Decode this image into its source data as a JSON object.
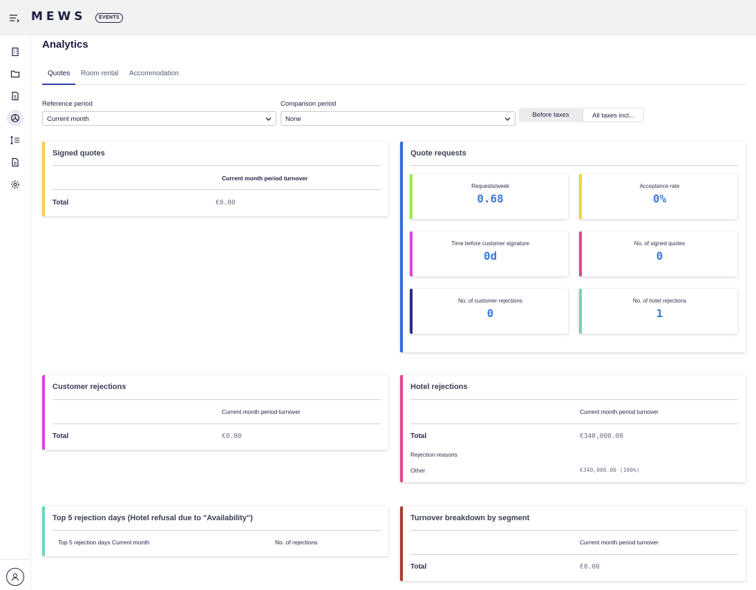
{
  "header": {
    "logo": "MEWS",
    "badge": "EVENTS"
  },
  "sidebar": {
    "items": [
      {
        "icon": "building-icon"
      },
      {
        "icon": "folder-icon"
      },
      {
        "icon": "invoice-icon"
      },
      {
        "icon": "analytics-pie-icon",
        "active": true
      },
      {
        "icon": "sort-list-icon"
      },
      {
        "icon": "document-icon"
      },
      {
        "icon": "settings-gear-icon"
      }
    ],
    "profile_icon": "user-avatar-icon"
  },
  "page": {
    "title": "Analytics"
  },
  "tabs": [
    {
      "label": "Quotes",
      "active": true
    },
    {
      "label": "Room rental"
    },
    {
      "label": "Accommodation"
    }
  ],
  "filters": {
    "reference": {
      "label": "Reference period",
      "value": "Current month"
    },
    "comparison": {
      "label": "Comparison period",
      "value": "None"
    },
    "tax_toggle": {
      "options": [
        "Before taxes",
        "All taxes incl..."
      ],
      "selected": "All taxes incl..."
    }
  },
  "cards": {
    "signed_quotes": {
      "title": "Signed quotes",
      "accent": "#f7cf45",
      "column": "Current month period turnover",
      "total_label": "Total",
      "total_value": "€0.00"
    },
    "quote_requests": {
      "title": "Quote requests",
      "accent": "#2f6be0",
      "kpis": [
        {
          "label": "Requests/week",
          "value": "0.68",
          "accent": "#9aeb4c"
        },
        {
          "label": "Acceptance rate",
          "value": "0%",
          "accent": "#f7cf45"
        },
        {
          "label": "Time before customer signature",
          "value": "0d",
          "accent": "#e23fe0"
        },
        {
          "label": "No. of signed quotes",
          "value": "0",
          "accent": "#e2448f"
        },
        {
          "label": "No. of customer rejections",
          "value": "0",
          "accent": "#2b2a8a"
        },
        {
          "label": "No. of hotel rejections",
          "value": "1",
          "accent": "#6fd4c0"
        }
      ]
    },
    "customer_rejections": {
      "title": "Customer rejections",
      "accent": "#e23fe0",
      "column": "Current month period turnover",
      "total_label": "Total",
      "total_value": "€0.00"
    },
    "hotel_rejections": {
      "title": "Hotel rejections",
      "accent": "#e2448f",
      "column": "Current month period turnover",
      "total_label": "Total",
      "total_value": "€340,000.00",
      "reasons_label": "Rejection reasons",
      "reason_name": "Other",
      "reason_value": "€340,000.00 (100%)"
    },
    "top5": {
      "title": "Top 5 rejection days (Hotel refusal due to \"Availability\")",
      "accent": "#6fd4c0",
      "col1": "Top 5 rejection days Current month",
      "col2": "No. of rejections"
    },
    "segment": {
      "title": "Turnover breakdown by segment",
      "accent": "#a83b2b",
      "column": "Current month period turnover",
      "total_label": "Total",
      "total_value": "€0.00"
    }
  }
}
